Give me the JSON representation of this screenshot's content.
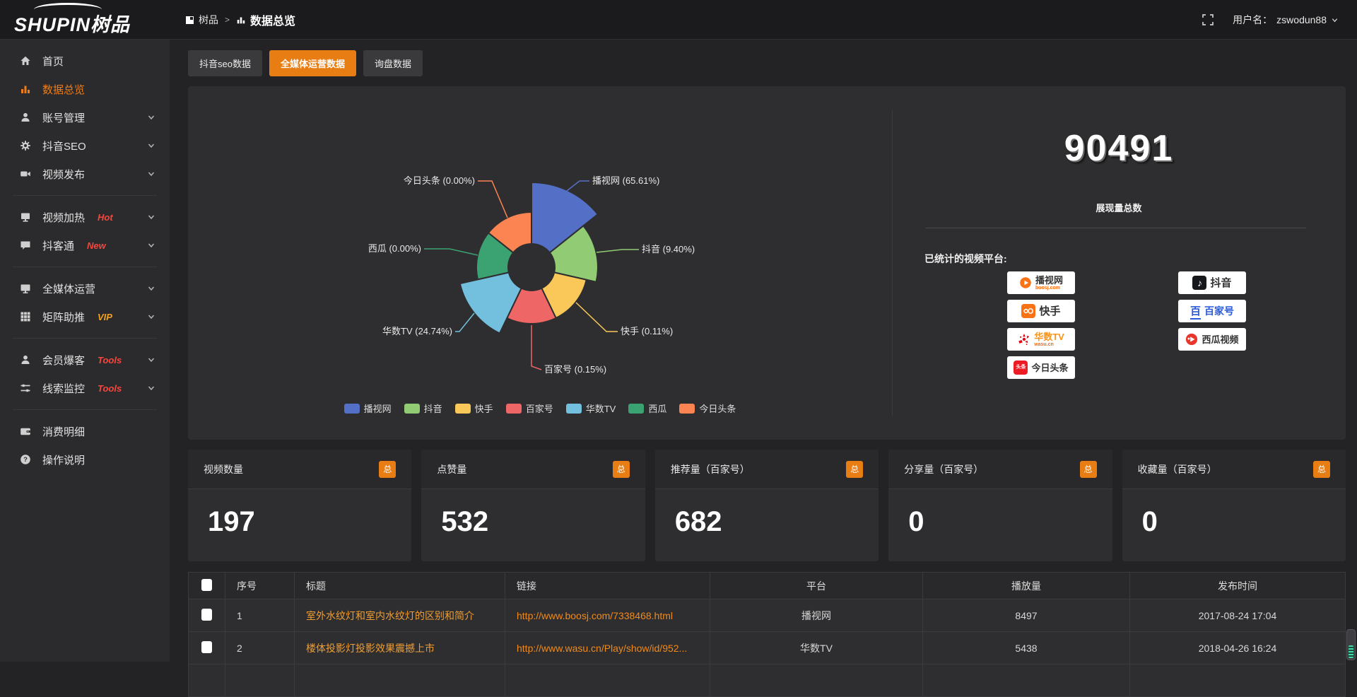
{
  "app": {
    "logo": "SHUPIN树品"
  },
  "header": {
    "breadcrumb_root": "树品",
    "breadcrumb_sep": ">",
    "breadcrumb_current": "数据总览",
    "username_label": "用户名：",
    "username": "zswodun88"
  },
  "sidebar": {
    "items": [
      {
        "label": "首页"
      },
      {
        "label": "数据总览",
        "active": true
      },
      {
        "label": "账号管理",
        "chevron": true
      },
      {
        "label": "抖音SEO",
        "chevron": true
      },
      {
        "label": "视频发布",
        "chevron": true
      },
      {
        "label": "视频加热",
        "badge": "Hot",
        "chevron": true
      },
      {
        "label": "抖客通",
        "badge": "New",
        "chevron": true
      },
      {
        "label": "全媒体运营",
        "chevron": true
      },
      {
        "label": "矩阵助推",
        "badge": "VIP",
        "chevron": true
      },
      {
        "label": "会员爆客",
        "badge": "Tools",
        "chevron": true
      },
      {
        "label": "线索监控",
        "badge": "Tools",
        "chevron": true
      },
      {
        "label": "消费明细"
      },
      {
        "label": "操作说明"
      }
    ]
  },
  "tabs": [
    {
      "label": "抖音seo数据"
    },
    {
      "label": "全媒体运营数据",
      "active": true
    },
    {
      "label": "询盘数据"
    }
  ],
  "chart_data": {
    "type": "pie",
    "subtype": "rose",
    "categories": [
      "播视网",
      "抖音",
      "快手",
      "百家号",
      "华数TV",
      "西瓜",
      "今日头条"
    ],
    "values": [
      65.61,
      9.4,
      0.11,
      0.15,
      24.74,
      0.0,
      0.0
    ],
    "unit": "%",
    "colors": [
      "#5470c6",
      "#91cc75",
      "#fac858",
      "#ee6666",
      "#73c0de",
      "#3ba272",
      "#fc8452"
    ],
    "labels": [
      "播视网 (65.61%)",
      "抖音 (9.40%)",
      "快手 (0.11%)",
      "百家号 (0.15%)",
      "华数TV (24.74%)",
      "西瓜 (0.00%)",
      "今日头条 (0.00%)"
    ],
    "legend": [
      "播视网",
      "抖音",
      "快手",
      "百家号",
      "华数TV",
      "西瓜",
      "今日头条"
    ],
    "legend_position": "bottom"
  },
  "summary": {
    "total": "90491",
    "total_label": "展现量总数",
    "platforms_label": "已统计的视频平台:"
  },
  "platforms": {
    "left": [
      {
        "name": "播视网",
        "sub": "boosj.com"
      },
      {
        "name": "快手"
      },
      {
        "name": "华数TV",
        "sub": "wasu.cn"
      },
      {
        "name": "今日头条",
        "logo_text": "头条"
      }
    ],
    "right": [
      {
        "name": "抖音"
      },
      {
        "name": "百家号",
        "logo_text": "百"
      },
      {
        "name": "西瓜视频"
      }
    ]
  },
  "stat_cards": [
    {
      "label": "视频数量",
      "badge": "总",
      "value": "197"
    },
    {
      "label": "点赞量",
      "badge": "总",
      "value": "532"
    },
    {
      "label": "推荐量（百家号）",
      "badge": "总",
      "value": "682"
    },
    {
      "label": "分享量（百家号）",
      "badge": "总",
      "value": "0"
    },
    {
      "label": "收藏量（百家号）",
      "badge": "总",
      "value": "0"
    }
  ],
  "table": {
    "headers": [
      "序号",
      "标题",
      "链接",
      "平台",
      "播放量",
      "发布时间"
    ],
    "rows": [
      {
        "no": "1",
        "title": "室外水纹灯和室内水纹灯的区别和简介",
        "link": "http://www.boosj.com/7338468.html",
        "platform": "播视网",
        "plays": "8497",
        "time": "2017-08-24 17:04"
      },
      {
        "no": "2",
        "title": "楼体投影灯投影效果震撼上市",
        "link": "http://www.wasu.cn/Play/show/id/952...",
        "platform": "华数TV",
        "plays": "5438",
        "time": "2018-04-26 16:24"
      }
    ]
  },
  "colors": {
    "accent_orange": "#e87d13",
    "hot_red": "#f5463d",
    "vip_gold": "#f2a11f",
    "link_orange": "#f08a1c",
    "panel_bg": "#2e2e30",
    "page_bg": "#232325"
  }
}
